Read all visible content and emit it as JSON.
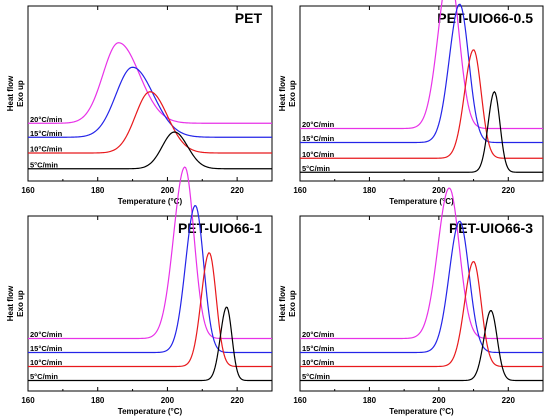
{
  "colors": {
    "5C": "#000000",
    "10C": "#e8191c",
    "15C": "#2424e8",
    "20C": "#e832e8",
    "axis": "#000000"
  },
  "chart_data": [
    {
      "type": "line",
      "title": "PET",
      "xlabel": "Temperature (°C)",
      "ylabel": "Heat flow",
      "ylabel2": "Exo up",
      "xlim": [
        160,
        230
      ],
      "xticks": [
        "160",
        "180",
        "200",
        "220"
      ],
      "grid": false,
      "series": [
        {
          "name": "20°C/min",
          "color_key": "20C",
          "baseline": 0.33,
          "peak_x": 186,
          "peak_h": 0.46,
          "sigma_l": 4.5,
          "sigma_r": 6.0
        },
        {
          "name": "15°C/min",
          "color_key": "15C",
          "baseline": 0.25,
          "peak_x": 190,
          "peak_h": 0.4,
          "sigma_l": 4.8,
          "sigma_r": 6.0
        },
        {
          "name": "10°C/min",
          "color_key": "10C",
          "baseline": 0.16,
          "peak_x": 195,
          "peak_h": 0.35,
          "sigma_l": 4.2,
          "sigma_r": 5.0
        },
        {
          "name": "5°C/min",
          "color_key": "5C",
          "baseline": 0.07,
          "peak_x": 202,
          "peak_h": 0.21,
          "sigma_l": 3.5,
          "sigma_r": 3.8
        }
      ]
    },
    {
      "type": "line",
      "title": "PET-UIO66-0.5",
      "xlabel": "Temperature (°C)",
      "ylabel": "Heat flow",
      "ylabel2": "Exo up",
      "xlim": [
        160,
        230
      ],
      "xticks": [
        "160",
        "180",
        "200",
        "220"
      ],
      "grid": false,
      "series": [
        {
          "name": "20°C/min",
          "color_key": "20C",
          "baseline": 0.3,
          "peak_x": 203,
          "peak_h": 0.9,
          "sigma_l": 3.2,
          "sigma_r": 2.8
        },
        {
          "name": "15°C/min",
          "color_key": "15C",
          "baseline": 0.22,
          "peak_x": 206,
          "peak_h": 0.79,
          "sigma_l": 3.0,
          "sigma_r": 2.6
        },
        {
          "name": "10°C/min",
          "color_key": "10C",
          "baseline": 0.13,
          "peak_x": 210,
          "peak_h": 0.62,
          "sigma_l": 2.6,
          "sigma_r": 2.2
        },
        {
          "name": "5°C/min",
          "color_key": "5C",
          "baseline": 0.05,
          "peak_x": 216,
          "peak_h": 0.46,
          "sigma_l": 1.8,
          "sigma_r": 1.6
        }
      ]
    },
    {
      "type": "line",
      "title": "PET-UIO66-1",
      "xlabel": "Temperature (°C)",
      "ylabel": "Heat flow",
      "ylabel2": "Exo up",
      "xlim": [
        160,
        230
      ],
      "xticks": [
        "160",
        "180",
        "200",
        "220"
      ],
      "grid": false,
      "series": [
        {
          "name": "20°C/min",
          "color_key": "20C",
          "baseline": 0.3,
          "peak_x": 205,
          "peak_h": 0.98,
          "sigma_l": 3.2,
          "sigma_r": 2.6
        },
        {
          "name": "15°C/min",
          "color_key": "15C",
          "baseline": 0.22,
          "peak_x": 208,
          "peak_h": 0.84,
          "sigma_l": 2.8,
          "sigma_r": 2.4
        },
        {
          "name": "10°C/min",
          "color_key": "10C",
          "baseline": 0.14,
          "peak_x": 212,
          "peak_h": 0.65,
          "sigma_l": 2.3,
          "sigma_r": 2.0
        },
        {
          "name": "5°C/min",
          "color_key": "5C",
          "baseline": 0.06,
          "peak_x": 217,
          "peak_h": 0.42,
          "sigma_l": 1.8,
          "sigma_r": 1.5
        }
      ]
    },
    {
      "type": "line",
      "title": "PET-UIO66-3",
      "xlabel": "Temperature (°C)",
      "ylabel": "Heat flow",
      "ylabel2": "Exo up",
      "xlim": [
        160,
        230
      ],
      "xticks": [
        "160",
        "180",
        "200",
        "220"
      ],
      "grid": false,
      "series": [
        {
          "name": "20°C/min",
          "color_key": "20C",
          "baseline": 0.3,
          "peak_x": 203,
          "peak_h": 0.86,
          "sigma_l": 3.3,
          "sigma_r": 2.9
        },
        {
          "name": "15°C/min",
          "color_key": "15C",
          "baseline": 0.22,
          "peak_x": 206,
          "peak_h": 0.75,
          "sigma_l": 3.0,
          "sigma_r": 2.7
        },
        {
          "name": "10°C/min",
          "color_key": "10C",
          "baseline": 0.14,
          "peak_x": 210,
          "peak_h": 0.6,
          "sigma_l": 2.6,
          "sigma_r": 2.2
        },
        {
          "name": "5°C/min",
          "color_key": "5C",
          "baseline": 0.06,
          "peak_x": 215,
          "peak_h": 0.4,
          "sigma_l": 2.0,
          "sigma_r": 1.8
        }
      ]
    }
  ]
}
